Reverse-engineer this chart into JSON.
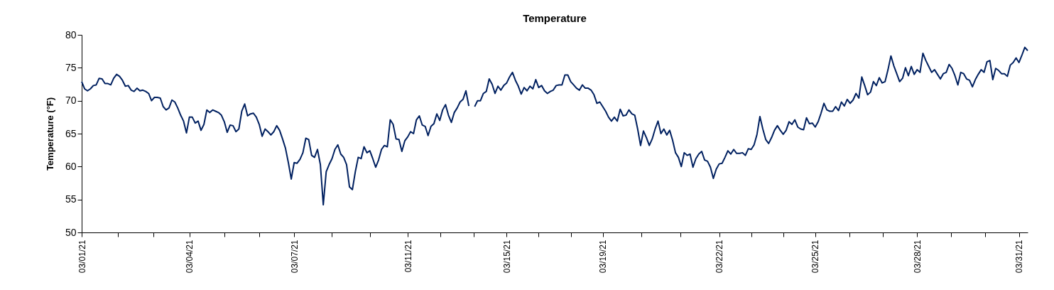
{
  "chart_data": {
    "type": "line",
    "title": "Temperature",
    "ylabel": "Temperature (°F)",
    "color": "#002060",
    "ylim": [
      50,
      80
    ],
    "yticks": [
      50,
      55,
      60,
      65,
      70,
      75,
      80
    ],
    "categories": [
      "03/01/21",
      null,
      null,
      null,
      null,
      null,
      null,
      null,
      null,
      null,
      null,
      null,
      null,
      null,
      null,
      null,
      null,
      null,
      null,
      null,
      null,
      null,
      null,
      null,
      null,
      null,
      null,
      null,
      null,
      null,
      null,
      null,
      null,
      null,
      null,
      null,
      null,
      "03/04/21",
      null,
      null,
      null,
      null,
      null,
      null,
      null,
      null,
      null,
      null,
      null,
      null,
      null,
      null,
      null,
      null,
      null,
      null,
      null,
      null,
      null,
      null,
      null,
      null,
      null,
      null,
      null,
      null,
      null,
      null,
      null,
      null,
      null,
      null,
      null,
      "03/07/21",
      null,
      null,
      null,
      null,
      null,
      null,
      null,
      null,
      null,
      null,
      null,
      null,
      null,
      null,
      null,
      null,
      null,
      null,
      null,
      null,
      null,
      null,
      null,
      null,
      null,
      null,
      null,
      null,
      null,
      null,
      null,
      null,
      null,
      null,
      null,
      null,
      null,
      null,
      "03/11/21",
      null,
      null,
      null,
      null,
      null,
      null,
      null,
      null,
      null,
      null,
      null,
      null,
      null,
      null,
      null,
      null,
      null,
      null,
      null,
      null,
      null,
      null,
      null,
      null,
      null,
      null,
      null,
      null,
      null,
      null,
      null,
      null,
      null,
      "03/15/21",
      null,
      null,
      null,
      null,
      null,
      null,
      null,
      null,
      null,
      null,
      null,
      null,
      null,
      null,
      null,
      null,
      null,
      null,
      null,
      null,
      null,
      null,
      null,
      null,
      null,
      null,
      null,
      null,
      null,
      null,
      null,
      null,
      "03/19/21",
      null,
      null,
      null,
      null,
      null,
      null,
      null,
      null,
      null,
      null,
      null,
      null,
      null,
      null,
      null,
      null,
      null,
      null,
      null,
      null,
      null,
      null,
      null,
      null,
      null,
      null,
      null,
      null,
      null,
      null,
      null,
      null,
      null,
      null,
      null,
      null,
      null,
      null,
      null,
      "03/22/21",
      null,
      null,
      null,
      null,
      null,
      null,
      null,
      null,
      null,
      null,
      null,
      null,
      null,
      null,
      null,
      null,
      null,
      null,
      null,
      null,
      null,
      null,
      null,
      null,
      null,
      null,
      null,
      null,
      null,
      null,
      null,
      null,
      "03/25/21",
      null,
      null,
      null,
      null,
      null,
      null,
      null,
      null,
      null,
      null,
      null,
      null,
      null,
      null,
      null,
      null,
      null,
      null,
      null,
      null,
      null,
      null,
      null,
      null,
      null,
      null,
      null,
      null,
      null,
      null,
      null,
      null,
      null,
      null,
      "03/28/21",
      null,
      null,
      null,
      null,
      null,
      null,
      null,
      null,
      null,
      null,
      null,
      null,
      null,
      null,
      null,
      null,
      null,
      null,
      null,
      null,
      null,
      null,
      null,
      null,
      null,
      null,
      null,
      null,
      null,
      null,
      null,
      null,
      null,
      null,
      "03/31/21",
      null,
      null,
      null
    ],
    "values": [
      72.9,
      71.8,
      71.5,
      71.8,
      72.3,
      72.4,
      73.4,
      73.3,
      72.6,
      72.6,
      72.4,
      73.4,
      74.0,
      73.7,
      73.1,
      72.2,
      72.3,
      71.6,
      71.4,
      71.9,
      71.5,
      71.6,
      71.4,
      71.1,
      70.0,
      70.5,
      70.5,
      70.4,
      69.1,
      68.6,
      68.9,
      70.1,
      69.8,
      68.9,
      67.8,
      66.9,
      65.1,
      67.5,
      67.5,
      66.6,
      66.9,
      65.5,
      66.4,
      68.6,
      68.2,
      68.6,
      68.4,
      68.2,
      67.8,
      66.8,
      65.2,
      66.3,
      66.2,
      65.3,
      65.7,
      68.4,
      69.5,
      67.7,
      68.0,
      68.1,
      67.5,
      66.4,
      64.6,
      65.7,
      65.3,
      64.8,
      65.3,
      66.2,
      65.5,
      64.2,
      62.8,
      60.6,
      58.1,
      60.6,
      60.5,
      61.1,
      62.1,
      64.3,
      64.1,
      61.7,
      61.4,
      62.6,
      60.3,
      54.2,
      59.2,
      60.3,
      61.2,
      62.6,
      63.3,
      61.9,
      61.4,
      60.3,
      56.9,
      56.5,
      59.2,
      61.4,
      61.2,
      63.0,
      62.1,
      62.4,
      61.2,
      59.9,
      61.0,
      62.6,
      63.2,
      63.0,
      67.1,
      66.4,
      64.2,
      64.1,
      62.3,
      63.9,
      64.5,
      65.3,
      65.0,
      67.1,
      67.7,
      66.3,
      66.1,
      64.7,
      66.1,
      66.5,
      68.0,
      67.0,
      68.6,
      69.4,
      67.8,
      66.7,
      68.2,
      68.9,
      69.8,
      70.2,
      71.5,
      69.2,
      null,
      69.1,
      70.0,
      70.0,
      71.1,
      71.4,
      73.3,
      72.5,
      71.1,
      72.2,
      71.6,
      72.3,
      72.7,
      73.6,
      74.3,
      73.1,
      72.2,
      71.0,
      72.0,
      71.5,
      72.2,
      71.8,
      73.2,
      72.0,
      72.3,
      71.5,
      71.1,
      71.4,
      71.6,
      72.3,
      72.4,
      72.4,
      73.9,
      73.9,
      72.9,
      72.4,
      71.9,
      71.6,
      72.4,
      71.9,
      71.9,
      71.6,
      70.9,
      69.6,
      69.8,
      69.1,
      68.4,
      67.5,
      66.9,
      67.5,
      66.9,
      68.7,
      67.7,
      67.8,
      68.6,
      68.0,
      67.8,
      65.7,
      63.2,
      65.4,
      64.4,
      63.2,
      64.2,
      65.7,
      66.9,
      65.0,
      65.7,
      64.8,
      65.5,
      64.0,
      62.1,
      61.4,
      60.0,
      62.1,
      61.7,
      61.9,
      59.9,
      61.2,
      61.9,
      62.3,
      61.0,
      60.8,
      59.9,
      58.2,
      59.6,
      60.4,
      60.5,
      61.4,
      62.4,
      61.9,
      62.6,
      62.0,
      62.0,
      62.1,
      61.7,
      62.7,
      62.6,
      63.3,
      64.9,
      67.6,
      65.7,
      64.1,
      63.5,
      64.4,
      65.5,
      66.2,
      65.5,
      64.9,
      65.5,
      66.8,
      66.4,
      67.1,
      66.0,
      65.7,
      65.6,
      67.4,
      66.5,
      66.6,
      66.0,
      66.8,
      68.1,
      69.6,
      68.6,
      68.4,
      68.4,
      69.1,
      68.5,
      69.8,
      69.2,
      70.2,
      69.6,
      70.1,
      71.1,
      70.4,
      73.6,
      72.3,
      70.9,
      71.3,
      72.9,
      72.3,
      73.5,
      72.7,
      72.9,
      74.7,
      76.8,
      75.3,
      74.1,
      72.9,
      73.4,
      75.0,
      73.8,
      75.2,
      74.0,
      74.7,
      74.3,
      77.2,
      76.1,
      75.2,
      74.3,
      74.7,
      74.0,
      73.3,
      74.1,
      74.3,
      75.5,
      74.9,
      73.8,
      72.4,
      74.3,
      74.1,
      73.3,
      73.1,
      72.1,
      73.2,
      74.0,
      74.7,
      74.3,
      75.9,
      76.1,
      73.2,
      74.9,
      74.6,
      74.1,
      74.1,
      73.7,
      75.4,
      75.8,
      76.5,
      75.8,
      76.9,
      78.1,
      77.6
    ]
  }
}
